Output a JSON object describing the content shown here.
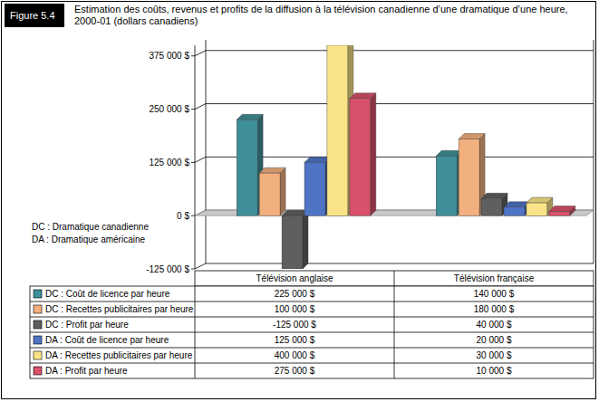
{
  "figure_label": "Figure 5.4",
  "chart_data": {
    "type": "bar",
    "title": "Estimation des coûts, revenus et profits de la diffusion à la télévision canadienne d’une dramatique d’une heure, 2000-01 (dollars canadiens)",
    "categories": [
      "Télévision anglaise",
      "Télévision française"
    ],
    "series": [
      {
        "name": "DC : Coût de licence par heure",
        "color": "#3f8f99",
        "values": [
          225000,
          140000
        ],
        "value_labels": [
          "225 000 $",
          "140 000 $"
        ]
      },
      {
        "name": "DC : Recettes publicitaires par heure",
        "color": "#f2b07e",
        "values": [
          100000,
          180000
        ],
        "value_labels": [
          "100 000 $",
          "180 000 $"
        ]
      },
      {
        "name": "DC : Profit par heure",
        "color": "#5f5f5f",
        "values": [
          -125000,
          40000
        ],
        "value_labels": [
          "-125 000 $",
          "40 000 $"
        ]
      },
      {
        "name": "DA : Coût de licence par heure",
        "color": "#4f74c6",
        "values": [
          125000,
          20000
        ],
        "value_labels": [
          "125 000 $",
          "20 000 $"
        ]
      },
      {
        "name": "DA : Recettes publicitaires par heure",
        "color": "#fbe487",
        "values": [
          400000,
          30000
        ],
        "value_labels": [
          "400 000 $",
          "30 000 $"
        ]
      },
      {
        "name": "DA : Profit par heure",
        "color": "#d8506a",
        "values": [
          275000,
          10000
        ],
        "value_labels": [
          "275 000 $",
          "10 000 $"
        ]
      }
    ],
    "ylim": [
      -125000,
      400000
    ],
    "yticks": [
      {
        "value": -125000,
        "label": "-125 000 $"
      },
      {
        "value": 0,
        "label": "0 $"
      },
      {
        "value": 125000,
        "label": "125 000 $"
      },
      {
        "value": 250000,
        "label": "250 000 $"
      },
      {
        "value": 375000,
        "label": "375 000 $"
      }
    ],
    "grid": true,
    "legend": "bottom",
    "annotations": [
      "DC : Dramatique canadienne",
      "DA : Dramatique américaine"
    ]
  }
}
